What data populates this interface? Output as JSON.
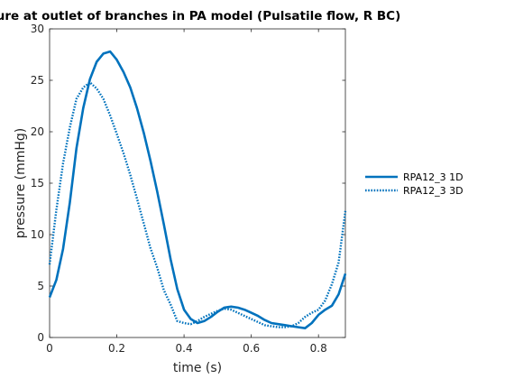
{
  "chart_data": {
    "type": "line",
    "title": "ure at outlet of branches in PA model (Pulsatile flow, R BC)",
    "xlabel": "time (s)",
    "ylabel": "pressure (mmHg)",
    "xlim": [
      0,
      0.88
    ],
    "ylim": [
      0,
      30
    ],
    "xticks": [
      0,
      0.2,
      0.4,
      0.6,
      0.8
    ],
    "xtick_labels": [
      "0",
      "0.2",
      "0.4",
      "0.6",
      "0.8"
    ],
    "yticks": [
      0,
      5,
      10,
      15,
      20,
      25,
      30
    ],
    "ytick_labels": [
      "0",
      "5",
      "10",
      "15",
      "20",
      "25",
      "30"
    ],
    "grid": false,
    "legend_position": "outside-right",
    "series": [
      {
        "name": "RPA12_3 1D",
        "style": "solid",
        "color": "#0072bd",
        "x": [
          0,
          0.02,
          0.04,
          0.06,
          0.08,
          0.1,
          0.12,
          0.14,
          0.16,
          0.18,
          0.2,
          0.22,
          0.24,
          0.26,
          0.28,
          0.3,
          0.32,
          0.34,
          0.36,
          0.38,
          0.4,
          0.42,
          0.44,
          0.46,
          0.48,
          0.5,
          0.52,
          0.54,
          0.56,
          0.58,
          0.6,
          0.62,
          0.64,
          0.66,
          0.68,
          0.7,
          0.72,
          0.74,
          0.76,
          0.78,
          0.8,
          0.82,
          0.84,
          0.86,
          0.88
        ],
        "y": [
          3.9,
          5.6,
          8.6,
          13.1,
          18.4,
          22.3,
          25.1,
          26.8,
          27.6,
          27.8,
          27.0,
          25.8,
          24.3,
          22.3,
          19.9,
          17.2,
          14.2,
          11.0,
          7.6,
          4.7,
          2.7,
          1.8,
          1.4,
          1.6,
          2.0,
          2.5,
          2.9,
          3.0,
          2.9,
          2.7,
          2.4,
          2.1,
          1.7,
          1.4,
          1.3,
          1.2,
          1.1,
          1.0,
          0.9,
          1.4,
          2.2,
          2.7,
          3.1,
          4.2,
          6.2
        ]
      },
      {
        "name": "RPA12_3 3D",
        "style": "dotted",
        "color": "#0072bd",
        "x": [
          0,
          0.02,
          0.04,
          0.06,
          0.08,
          0.1,
          0.12,
          0.14,
          0.16,
          0.18,
          0.2,
          0.22,
          0.24,
          0.26,
          0.28,
          0.3,
          0.32,
          0.34,
          0.36,
          0.38,
          0.4,
          0.42,
          0.44,
          0.46,
          0.48,
          0.5,
          0.52,
          0.54,
          0.56,
          0.58,
          0.6,
          0.62,
          0.64,
          0.66,
          0.68,
          0.7,
          0.72,
          0.74,
          0.76,
          0.78,
          0.8,
          0.82,
          0.84,
          0.86,
          0.88
        ],
        "y": [
          7.1,
          12.4,
          16.9,
          20.4,
          23.2,
          24.3,
          24.8,
          24.2,
          23.2,
          21.6,
          19.8,
          17.9,
          15.8,
          13.5,
          11.1,
          8.7,
          6.8,
          4.6,
          3.2,
          1.6,
          1.4,
          1.3,
          1.6,
          2.0,
          2.3,
          2.6,
          2.8,
          2.7,
          2.4,
          2.1,
          1.8,
          1.5,
          1.2,
          1.1,
          1.0,
          1.0,
          1.1,
          1.4,
          2.0,
          2.4,
          2.7,
          3.6,
          5.2,
          7.3,
          12.3
        ]
      }
    ]
  }
}
